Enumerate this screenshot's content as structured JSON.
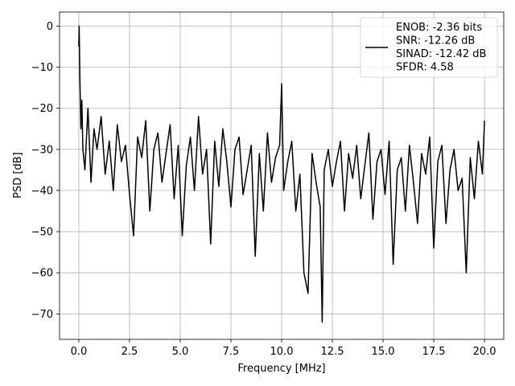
{
  "chart_data": {
    "type": "line",
    "title": "",
    "xlabel": "Frequency [MHz]",
    "ylabel": "PSD [dB]",
    "xlim": [
      -0.95,
      20.95
    ],
    "ylim": [
      -76.2,
      3.4
    ],
    "xticks": [
      0.0,
      2.5,
      5.0,
      7.5,
      10.0,
      12.5,
      15.0,
      17.5,
      20.0
    ],
    "xtick_labels": [
      "0.0",
      "2.5",
      "5.0",
      "7.5",
      "10.0",
      "12.5",
      "15.0",
      "17.5",
      "20.0"
    ],
    "yticks": [
      0,
      -10,
      -20,
      -30,
      -40,
      -50,
      -60,
      -70
    ],
    "ytick_labels": [
      "0",
      "−10",
      "−20",
      "−30",
      "−40",
      "−50",
      "−60",
      "−70"
    ],
    "grid": true,
    "legend_position": "top-right",
    "series": [
      {
        "name": "ENOB: -2.36 bits\nSNR: -12.26 dB\nSINAD: -12.42 dB\nSFDR: 4.58",
        "color": "#000000",
        "x": [
          0.0,
          0.02,
          0.05,
          0.1,
          0.15,
          0.2,
          0.3,
          0.45,
          0.6,
          0.75,
          0.9,
          1.1,
          1.3,
          1.5,
          1.7,
          1.9,
          2.1,
          2.3,
          2.5,
          2.7,
          2.9,
          3.1,
          3.3,
          3.5,
          3.7,
          3.9,
          4.1,
          4.3,
          4.5,
          4.7,
          4.9,
          5.1,
          5.3,
          5.5,
          5.7,
          5.9,
          6.1,
          6.3,
          6.5,
          6.7,
          6.9,
          7.1,
          7.3,
          7.5,
          7.7,
          7.9,
          8.1,
          8.3,
          8.5,
          8.7,
          8.9,
          9.1,
          9.3,
          9.5,
          9.7,
          9.9,
          10.0,
          10.1,
          10.3,
          10.5,
          10.7,
          10.9,
          11.1,
          11.3,
          11.5,
          11.7,
          11.9,
          12.0,
          12.1,
          12.3,
          12.5,
          12.7,
          12.9,
          13.1,
          13.3,
          13.5,
          13.7,
          13.9,
          14.1,
          14.3,
          14.5,
          14.7,
          14.9,
          15.1,
          15.3,
          15.5,
          15.7,
          15.9,
          16.1,
          16.3,
          16.5,
          16.7,
          16.9,
          17.1,
          17.3,
          17.5,
          17.7,
          17.9,
          18.1,
          18.3,
          18.5,
          18.7,
          18.9,
          19.1,
          19.3,
          19.5,
          19.7,
          19.9,
          20.0
        ],
        "y": [
          -5,
          0,
          -12,
          -25,
          -18,
          -30,
          -35,
          -20,
          -38,
          -25,
          -30,
          -22,
          -36,
          -28,
          -40,
          -24,
          -33,
          -29,
          -41,
          -51,
          -27,
          -32,
          -23,
          -45,
          -30,
          -26,
          -38,
          -31,
          -24,
          -42,
          -29,
          -51,
          -34,
          -27,
          -40,
          -22,
          -36,
          -30,
          -53,
          -28,
          -39,
          -25,
          -33,
          -44,
          -30,
          -27,
          -41,
          -35,
          -29,
          -56,
          -31,
          -45,
          -26,
          -38,
          -32,
          -29,
          -14,
          -40,
          -33,
          -28,
          -45,
          -36,
          -60,
          -65,
          -31,
          -38,
          -44,
          -72,
          -35,
          -30,
          -39,
          -33,
          -28,
          -45,
          -31,
          -37,
          -29,
          -42,
          -34,
          -26,
          -47,
          -33,
          -30,
          -41,
          -28,
          -58,
          -35,
          -32,
          -45,
          -29,
          -38,
          -48,
          -31,
          -36,
          -27,
          -54,
          -33,
          -29,
          -48,
          -35,
          -30,
          -40,
          -37,
          -60,
          -32,
          -42,
          -28,
          -36,
          -23
        ]
      }
    ]
  }
}
